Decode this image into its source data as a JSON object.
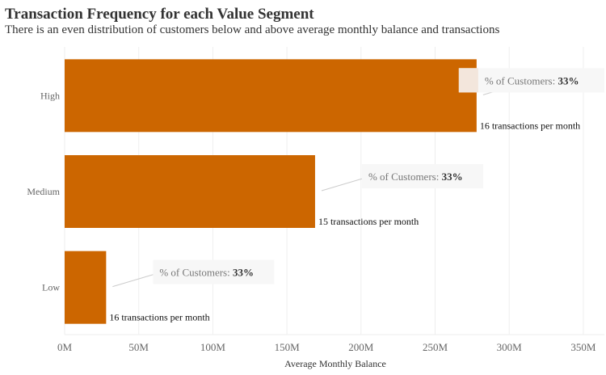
{
  "header": {
    "title": "Transaction Frequency for each Value Segment",
    "subtitle": "There is an even distribution of customers below and above average monthly balance and transactions"
  },
  "colors": {
    "bar": "#cc6600",
    "grid": "#eeeeee",
    "annotation_bg": "#f7f7f7",
    "annotation_highlight": "#f3e6dc"
  },
  "chart_data": {
    "type": "bar",
    "orientation": "horizontal",
    "categories": [
      "High",
      "Medium",
      "Low"
    ],
    "values": [
      278000000,
      169000000,
      28000000
    ],
    "xlabel": "Average Monthly Balance",
    "ylabel": "",
    "xlim": [
      0,
      350000000
    ],
    "x_ticks": [
      "0M",
      "50M",
      "100M",
      "150M",
      "200M",
      "250M",
      "300M",
      "350M"
    ],
    "grid": "vertical",
    "data_labels": [
      "16 transactions per month",
      "15 transactions per month",
      "16 transactions per month"
    ],
    "annotations": [
      {
        "label": "% of Customers: ",
        "value": "33%"
      },
      {
        "label": "% of Customers: ",
        "value": "33%"
      },
      {
        "label": "% of Customers: ",
        "value": "33%"
      }
    ]
  }
}
